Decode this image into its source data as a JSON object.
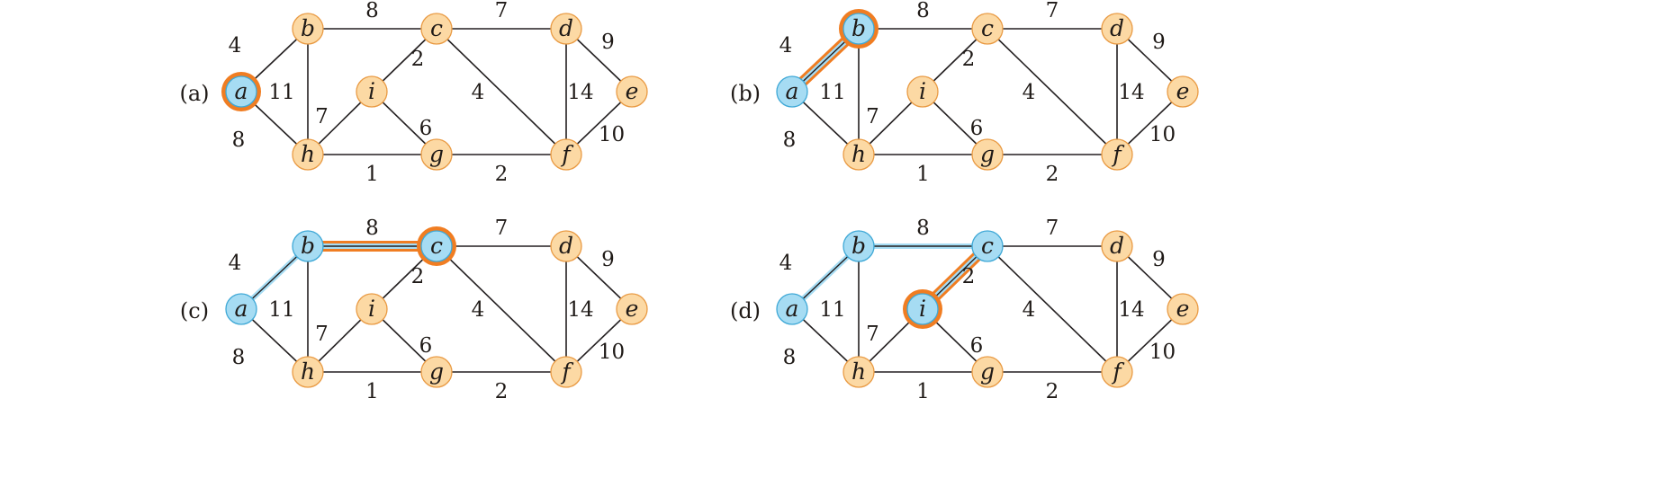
{
  "colors": {
    "edge": "#231f20",
    "node_fill": "#fcd9a4",
    "node_stroke": "#e99a43",
    "tree_fill": "#a6dcf3",
    "tree_stroke": "#3ea8d6",
    "highlight": "#f07d22"
  },
  "graph": {
    "nodes": [
      {
        "id": "a",
        "label": "a"
      },
      {
        "id": "b",
        "label": "b"
      },
      {
        "id": "c",
        "label": "c"
      },
      {
        "id": "d",
        "label": "d"
      },
      {
        "id": "e",
        "label": "e"
      },
      {
        "id": "f",
        "label": "f"
      },
      {
        "id": "g",
        "label": "g"
      },
      {
        "id": "h",
        "label": "h"
      },
      {
        "id": "i",
        "label": "i"
      }
    ],
    "edges": [
      {
        "u": "a",
        "v": "b",
        "weight": "4"
      },
      {
        "u": "b",
        "v": "c",
        "weight": "8"
      },
      {
        "u": "c",
        "v": "d",
        "weight": "7"
      },
      {
        "u": "d",
        "v": "e",
        "weight": "9"
      },
      {
        "u": "a",
        "v": "h",
        "weight": "8"
      },
      {
        "u": "b",
        "v": "h",
        "weight": "11"
      },
      {
        "u": "c",
        "v": "i",
        "weight": "2"
      },
      {
        "u": "c",
        "v": "f",
        "weight": "4"
      },
      {
        "u": "d",
        "v": "f",
        "weight": "14"
      },
      {
        "u": "h",
        "v": "i",
        "weight": "7"
      },
      {
        "u": "i",
        "v": "g",
        "weight": "6"
      },
      {
        "u": "h",
        "v": "g",
        "weight": "1"
      },
      {
        "u": "g",
        "v": "f",
        "weight": "2"
      },
      {
        "u": "e",
        "v": "f",
        "weight": "10"
      }
    ]
  },
  "panels": [
    {
      "label": "(a)",
      "tree_nodes": [
        "a"
      ],
      "tree_edges": [],
      "new_node": "a",
      "new_edge": null
    },
    {
      "label": "(b)",
      "tree_nodes": [
        "a",
        "b"
      ],
      "tree_edges": [
        [
          "a",
          "b"
        ]
      ],
      "new_node": "b",
      "new_edge": [
        "a",
        "b"
      ]
    },
    {
      "label": "(c)",
      "tree_nodes": [
        "a",
        "b",
        "c"
      ],
      "tree_edges": [
        [
          "a",
          "b"
        ],
        [
          "b",
          "c"
        ]
      ],
      "new_node": "c",
      "new_edge": [
        "b",
        "c"
      ]
    },
    {
      "label": "(d)",
      "tree_nodes": [
        "a",
        "b",
        "c",
        "i"
      ],
      "tree_edges": [
        [
          "a",
          "b"
        ],
        [
          "b",
          "c"
        ],
        [
          "c",
          "i"
        ]
      ],
      "new_node": "i",
      "new_edge": [
        "c",
        "i"
      ]
    }
  ]
}
